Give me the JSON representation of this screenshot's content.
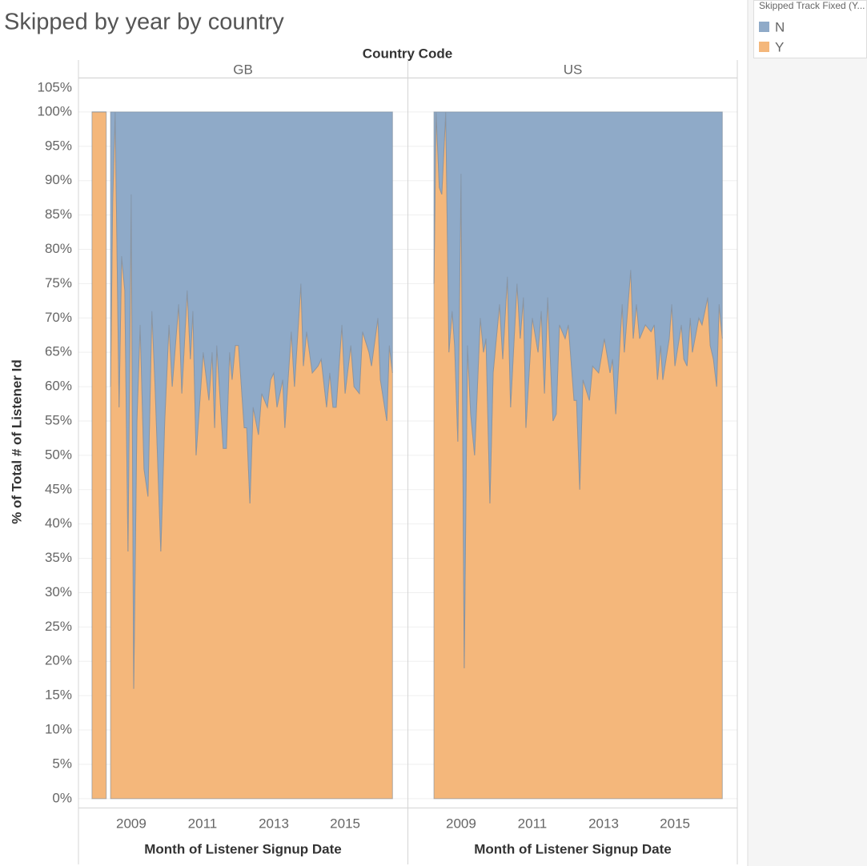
{
  "chart_data": {
    "type": "area",
    "title": "Skipped by year by country",
    "facet_label": "Country Code",
    "x_label": "Month of Listener Signup Date",
    "y_label": "% of Total # of Listener Id",
    "legend_title": "Skipped Track Fixed (Y...",
    "stacked": true,
    "grid": true,
    "legend_position": "top-right",
    "xlim": [
      2007.52,
      2016.75
    ],
    "xticks": [
      2009,
      2011,
      2013,
      2015
    ],
    "ylim": [
      -1.3,
      105
    ],
    "yticks": [
      {
        "value": 0,
        "label": "0%"
      },
      {
        "value": 5,
        "label": "5%"
      },
      {
        "value": 10,
        "label": "10%"
      },
      {
        "value": 15,
        "label": "15%"
      },
      {
        "value": 20,
        "label": "20%"
      },
      {
        "value": 25,
        "label": "25%"
      },
      {
        "value": 30,
        "label": "30%"
      },
      {
        "value": 35,
        "label": "35%"
      },
      {
        "value": 40,
        "label": "40%"
      },
      {
        "value": 45,
        "label": "45%"
      },
      {
        "value": 50,
        "label": "50%"
      },
      {
        "value": 55,
        "label": "55%"
      },
      {
        "value": 60,
        "label": "60%"
      },
      {
        "value": 65,
        "label": "65%"
      },
      {
        "value": 70,
        "label": "70%"
      },
      {
        "value": 75,
        "label": "75%"
      },
      {
        "value": 80,
        "label": "80%"
      },
      {
        "value": 85,
        "label": "85%"
      },
      {
        "value": 90,
        "label": "90%"
      },
      {
        "value": 95,
        "label": "95%"
      },
      {
        "value": 100,
        "label": "100%"
      },
      {
        "value": 105,
        "label": "105%"
      }
    ],
    "facets": [
      {
        "name": "GB",
        "x": [
          2007.9,
          2008.3,
          2008.36,
          2008.42,
          2008.48,
          2008.55,
          2008.66,
          2008.73,
          2008.82,
          2008.91,
          2009.0,
          2009.07,
          2009.16,
          2009.25,
          2009.36,
          2009.47,
          2009.58,
          2009.67,
          2009.83,
          2009.94,
          2010.06,
          2010.15,
          2010.33,
          2010.42,
          2010.57,
          2010.66,
          2010.73,
          2010.82,
          2011.02,
          2011.18,
          2011.27,
          2011.34,
          2011.4,
          2011.58,
          2011.67,
          2011.76,
          2011.83,
          2011.92,
          2012.01,
          2012.17,
          2012.24,
          2012.33,
          2012.42,
          2012.57,
          2012.66,
          2012.82,
          2012.91,
          2013.0,
          2013.09,
          2013.25,
          2013.31,
          2013.49,
          2013.58,
          2013.76,
          2013.83,
          2013.92,
          2014.08,
          2014.24,
          2014.33,
          2014.48,
          2014.57,
          2014.66,
          2014.75,
          2014.91,
          2015.0,
          2015.16,
          2015.25,
          2015.4,
          2015.49,
          2015.67,
          2015.74,
          2015.92,
          2015.99,
          2016.17,
          2016.24,
          2016.33
        ],
        "series": [
          {
            "name": "N",
            "color": "#8faac8",
            "values": [
              0,
              0,
              null,
              40,
              13,
              0,
              43,
              21,
              26,
              64,
              12,
              84,
              45,
              31,
              52,
              56,
              29,
              40,
              64,
              45,
              31,
              40,
              28,
              41,
              26,
              36,
              29,
              50,
              35,
              42,
              35,
              46,
              34,
              49,
              49,
              35,
              39,
              34,
              34,
              46,
              46,
              57,
              43,
              47,
              41,
              43,
              39,
              38,
              43,
              39,
              46,
              32,
              40,
              25,
              37,
              32,
              38,
              37,
              36,
              43,
              38,
              43,
              43,
              31,
              41,
              34,
              40,
              41,
              32,
              35,
              37,
              30,
              39,
              45,
              34,
              38
            ]
          },
          {
            "name": "Y",
            "color": "#f4b77b",
            "values": [
              100,
              100,
              null,
              60,
              87,
              100,
              57,
              79,
              74,
              36,
              88,
              16,
              55,
              69,
              48,
              44,
              71,
              60,
              36,
              55,
              69,
              60,
              72,
              59,
              74,
              64,
              71,
              50,
              65,
              58,
              65,
              54,
              66,
              51,
              51,
              65,
              61,
              66,
              66,
              54,
              54,
              43,
              57,
              53,
              59,
              57,
              61,
              62,
              57,
              61,
              54,
              68,
              60,
              75,
              63,
              68,
              62,
              63,
              64,
              57,
              62,
              57,
              57,
              69,
              59,
              66,
              60,
              59,
              68,
              65,
              63,
              70,
              61,
              55,
              66,
              62
            ]
          }
        ]
      },
      {
        "name": "US",
        "x": [
          2008.24,
          2008.3,
          2008.39,
          2008.46,
          2008.57,
          2008.66,
          2008.75,
          2008.82,
          2008.91,
          2009.0,
          2009.09,
          2009.18,
          2009.27,
          2009.38,
          2009.54,
          2009.63,
          2009.7,
          2009.81,
          2009.9,
          2010.08,
          2010.17,
          2010.3,
          2010.39,
          2010.57,
          2010.66,
          2010.75,
          2010.82,
          2011.0,
          2011.16,
          2011.25,
          2011.34,
          2011.43,
          2011.58,
          2011.67,
          2011.76,
          2011.92,
          2012.01,
          2012.17,
          2012.24,
          2012.33,
          2012.42,
          2012.6,
          2012.69,
          2012.86,
          2013.02,
          2013.18,
          2013.25,
          2013.34,
          2013.52,
          2013.58,
          2013.76,
          2013.83,
          2013.92,
          2014.01,
          2014.17,
          2014.33,
          2014.42,
          2014.51,
          2014.6,
          2014.66,
          2014.84,
          2014.91,
          2015.0,
          2015.18,
          2015.25,
          2015.34,
          2015.43,
          2015.49,
          2015.67,
          2015.76,
          2015.92,
          2015.99,
          2016.08,
          2016.17,
          2016.24,
          2016.33
        ],
        "series": [
          {
            "name": "N",
            "color": "#8faac8",
            "values": [
              25,
              0,
              11,
              12,
              0,
              35,
              29,
              34,
              48,
              9,
              81,
              34,
              44,
              50,
              30,
              35,
              33,
              57,
              38,
              28,
              36,
              24,
              43,
              25,
              33,
              27,
              46,
              30,
              35,
              29,
              41,
              27,
              45,
              44,
              31,
              33,
              31,
              42,
              42,
              55,
              39,
              42,
              37,
              38,
              33,
              38,
              36,
              44,
              28,
              35,
              23,
              33,
              28,
              33,
              31,
              32,
              31,
              39,
              34,
              39,
              33,
              28,
              37,
              31,
              36,
              37,
              30,
              35,
              30,
              31,
              27,
              34,
              36,
              40,
              28,
              33
            ]
          },
          {
            "name": "Y",
            "color": "#f4b77b",
            "values": [
              75,
              100,
              89,
              88,
              100,
              65,
              71,
              66,
              52,
              91,
              19,
              66,
              56,
              50,
              70,
              65,
              67,
              43,
              62,
              72,
              64,
              76,
              57,
              75,
              67,
              73,
              54,
              70,
              65,
              71,
              59,
              73,
              55,
              56,
              69,
              67,
              69,
              58,
              58,
              45,
              61,
              58,
              63,
              62,
              67,
              62,
              64,
              56,
              72,
              65,
              77,
              67,
              72,
              67,
              69,
              68,
              69,
              61,
              66,
              61,
              67,
              72,
              63,
              69,
              64,
              63,
              70,
              65,
              70,
              69,
              73,
              66,
              64,
              60,
              72,
              67
            ]
          }
        ]
      }
    ]
  }
}
